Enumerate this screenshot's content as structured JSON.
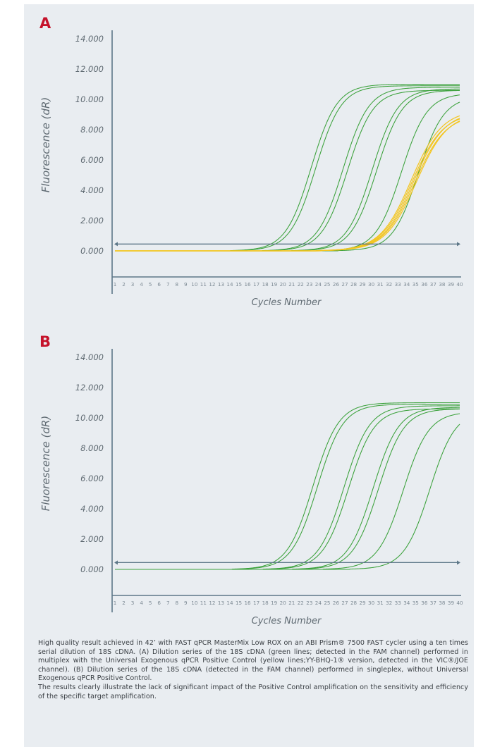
{
  "colors": {
    "panel_bg": "#e9edf1",
    "axis": "#5d7788",
    "letter": "#c5132b",
    "green": "#3aa13a",
    "yellow": "#f3c51f",
    "text": "#5f6a72"
  },
  "chart_data": [
    {
      "type": "line",
      "panel_letter": "A",
      "xlabel": "Cycles Number",
      "ylabel": "Fluorescence (dR)",
      "xlim": [
        1,
        40
      ],
      "ylim": [
        0,
        14
      ],
      "yticks": [
        "0.000",
        "2.000",
        "4.000",
        "6.000",
        "8.000",
        "10.000",
        "12.000",
        "14.000"
      ],
      "xticks": [
        "1",
        "2",
        "3",
        "4",
        "5",
        "6",
        "7",
        "8",
        "9",
        "10",
        "11",
        "12",
        "13",
        "14",
        "15",
        "16",
        "17",
        "18",
        "19",
        "20",
        "21",
        "22",
        "23",
        "24",
        "25",
        "26",
        "27",
        "28",
        "29",
        "30",
        "31",
        "32",
        "33",
        "34",
        "35",
        "36",
        "37",
        "38",
        "39",
        "40"
      ],
      "threshold": 0.45,
      "grid": false,
      "series": [
        {
          "color": "green",
          "midpoint": 23.2,
          "max": 11.0,
          "slope": 1.45
        },
        {
          "color": "green",
          "midpoint": 23.7,
          "max": 10.9,
          "slope": 1.45
        },
        {
          "color": "green",
          "midpoint": 26.8,
          "max": 10.8,
          "slope": 1.45
        },
        {
          "color": "green",
          "midpoint": 27.3,
          "max": 10.6,
          "slope": 1.45
        },
        {
          "color": "green",
          "midpoint": 30.1,
          "max": 10.7,
          "slope": 1.45
        },
        {
          "color": "green",
          "midpoint": 30.6,
          "max": 10.6,
          "slope": 1.45
        },
        {
          "color": "green",
          "midpoint": 33.4,
          "max": 10.4,
          "slope": 1.45
        },
        {
          "color": "green",
          "midpoint": 35.3,
          "max": 10.2,
          "slope": 1.45
        },
        {
          "color": "yellow",
          "midpoint": 34.5,
          "max": 9.3,
          "slope": 1.75
        },
        {
          "color": "yellow",
          "midpoint": 34.6,
          "max": 9.1,
          "slope": 1.75
        },
        {
          "color": "yellow",
          "midpoint": 34.8,
          "max": 9.2,
          "slope": 1.75
        },
        {
          "color": "yellow",
          "midpoint": 34.9,
          "max": 9.0,
          "slope": 1.75
        },
        {
          "color": "yellow",
          "midpoint": 35.1,
          "max": 9.1,
          "slope": 1.75
        }
      ]
    },
    {
      "type": "line",
      "panel_letter": "B",
      "xlabel": "Cycles Number",
      "ylabel": "Fluorescence (dR)",
      "xlim": [
        1,
        40
      ],
      "ylim": [
        0,
        14
      ],
      "yticks": [
        "0.000",
        "2.000",
        "4.000",
        "6.000",
        "8.000",
        "10.000",
        "12.000",
        "14.000"
      ],
      "xticks": [
        "1",
        "2",
        "3",
        "4",
        "5",
        "6",
        "7",
        "8",
        "9",
        "10",
        "11",
        "12",
        "13",
        "14",
        "15",
        "16",
        "17",
        "18",
        "19",
        "20",
        "21",
        "22",
        "23",
        "24",
        "25",
        "26",
        "27",
        "28",
        "29",
        "30",
        "31",
        "32",
        "33",
        "34",
        "35",
        "36",
        "37",
        "38",
        "39",
        "40"
      ],
      "threshold": 0.45,
      "grid": false,
      "series": [
        {
          "color": "green",
          "midpoint": 23.4,
          "max": 11.0,
          "slope": 1.45
        },
        {
          "color": "green",
          "midpoint": 23.9,
          "max": 10.9,
          "slope": 1.45
        },
        {
          "color": "green",
          "midpoint": 26.9,
          "max": 10.8,
          "slope": 1.45
        },
        {
          "color": "green",
          "midpoint": 27.4,
          "max": 10.6,
          "slope": 1.45
        },
        {
          "color": "green",
          "midpoint": 30.2,
          "max": 10.7,
          "slope": 1.45
        },
        {
          "color": "green",
          "midpoint": 30.8,
          "max": 10.6,
          "slope": 1.45
        },
        {
          "color": "green",
          "midpoint": 33.6,
          "max": 10.4,
          "slope": 1.45
        },
        {
          "color": "green",
          "midpoint": 36.6,
          "max": 10.5,
          "slope": 1.45
        }
      ]
    }
  ],
  "caption": {
    "paragraph1": "High quality result achieved in 42’ with FAST qPCR MasterMix Low ROX on an ABI Prism® 7500 FAST cycler using a ten times serial dilution of 18S cDNA. (A) Dilution series of the 18S cDNA (green lines; detected in the FAM channel) performed in multiplex with the Universal Exogenous qPCR Positive Control (yellow lines;YY-BHQ-1® version, detected in the VIC®/JOE channel). (B) Dilution series of the 18S cDNA (detected in the FAM channel) performed in singleplex, without Universal Exogenous qPCR Positive Control.",
    "paragraph2": "The results clearly illustrate the lack of significant impact of the Positive Control amplification on the sensitivity and efficiency of the specific target amplification."
  }
}
